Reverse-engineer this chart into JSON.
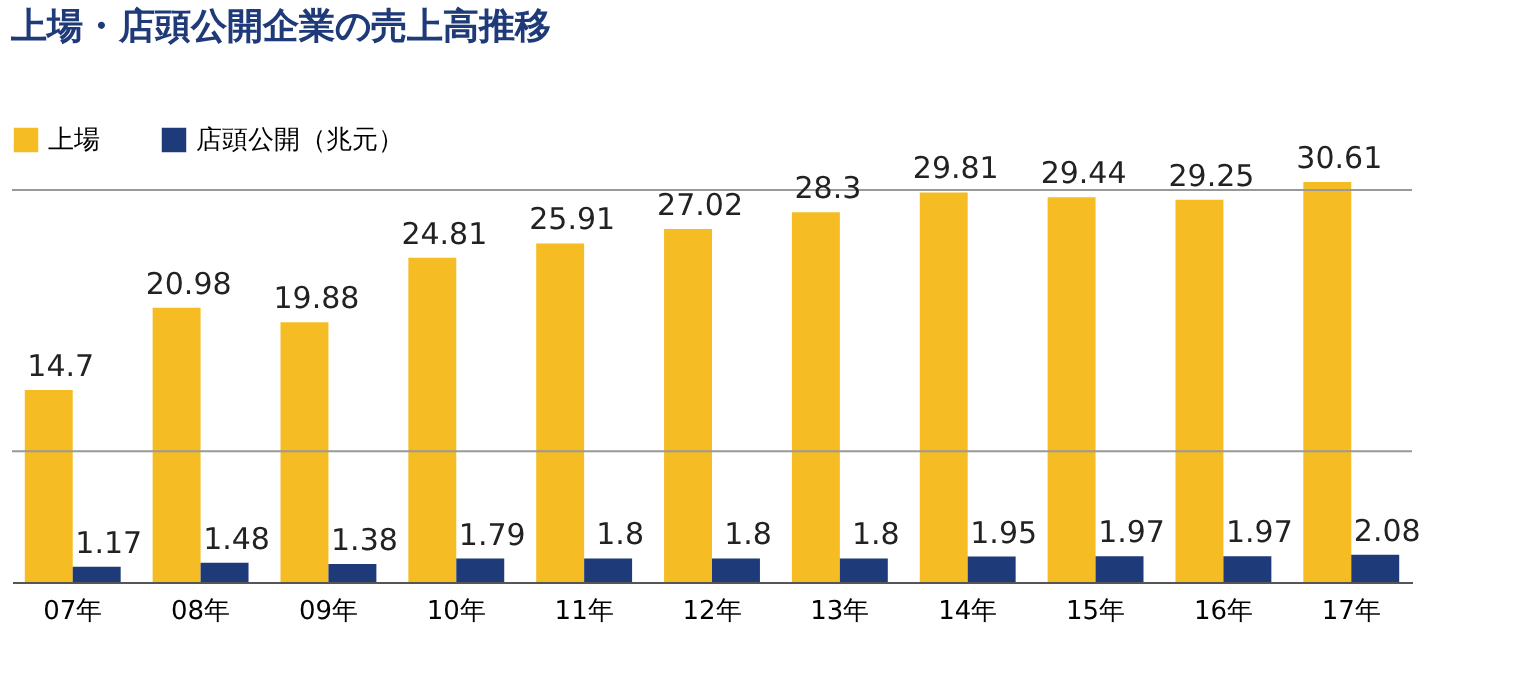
{
  "chart_data": {
    "type": "bar",
    "title": "上場・店頭公開企業の売上高推移",
    "categories": [
      "07年",
      "08年",
      "09年",
      "10年",
      "11年",
      "12年",
      "13年",
      "14年",
      "15年",
      "16年",
      "17年"
    ],
    "series": [
      {
        "name": "上場",
        "color": "#f5bd23",
        "values": [
          14.7,
          20.98,
          19.88,
          24.81,
          25.91,
          27.02,
          28.3,
          29.81,
          29.44,
          29.25,
          30.61
        ]
      },
      {
        "name": "店頭公開（兆元）",
        "color": "#1f3a78",
        "values": [
          1.17,
          1.48,
          1.38,
          1.79,
          1.8,
          1.8,
          1.8,
          1.95,
          1.97,
          1.97,
          2.08
        ]
      }
    ],
    "ref_lines": [
      {
        "axis": "y",
        "value": 10,
        "color": "#999999"
      },
      {
        "axis": "y",
        "value": 30,
        "color": "#999999"
      }
    ],
    "legend": "top left",
    "data_labels": true,
    "tick_labels": "x"
  }
}
